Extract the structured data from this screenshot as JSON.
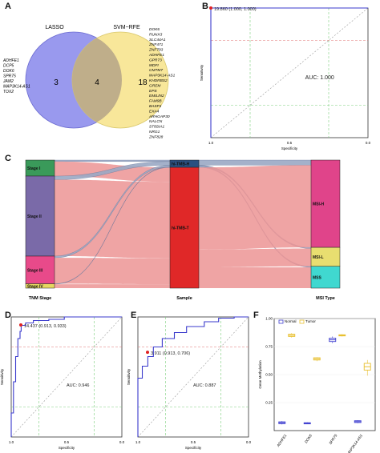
{
  "panel_labels": [
    "A",
    "B",
    "C",
    "D",
    "E",
    "F"
  ],
  "venn": {
    "left_label": "LASSO",
    "right_label": "SVM−RFE",
    "left_only": "3",
    "both": "4",
    "right_only": "18",
    "left_genes": [
      "ADHFE1",
      "DCP5",
      "DOK6",
      "SPR75",
      "JAM2",
      "MAP3K14-AS1",
      "TOX2"
    ],
    "right_genes": [
      "DOK6",
      "RUNX3",
      "SLC44A1",
      "ZNF471",
      "ZNF793",
      "ADHFE1",
      "GPR73",
      "MDFI",
      "CMTM7",
      "MAP3K14-AS1",
      "KHDRBS2",
      "GREM",
      "EPS",
      "EMILIN2",
      "FAM9B",
      "BASP1",
      "EXA4",
      "ARHGAP30",
      "NALCN",
      "ST8SIA1",
      "NRG1",
      "ZNF828"
    ],
    "colors": {
      "left": "#9999ee",
      "right": "#f8e79a",
      "overlap": "#bfae8a"
    }
  },
  "chart_data": [
    {
      "panel": "B",
      "type": "line",
      "xlabel": "Specificity",
      "ylabel": "Sensitivity",
      "x": [
        1.0,
        1.0,
        0.0
      ],
      "y": [
        0.0,
        1.0,
        1.0
      ],
      "xlim": [
        1.0,
        0.0
      ],
      "ylim": [
        0.0,
        1.0
      ],
      "xticks": [
        "1.0",
        "0.5",
        "0.0"
      ],
      "threshold_label": "19.860 (1.000, 1.000)",
      "auc_label": "AUC: 1.000",
      "grid": true
    },
    {
      "panel": "C",
      "type": "sankey",
      "axes": [
        "TNM Stage",
        "Sample",
        "MSI Type"
      ],
      "nodes": [
        {
          "axis": 0,
          "name": "Stage I",
          "value": 0.11,
          "color": "#3a9a5a"
        },
        {
          "axis": 0,
          "name": "Stage II",
          "value": 0.55,
          "color": "#7a6aa8"
        },
        {
          "axis": 0,
          "name": "Stage III",
          "value": 0.19,
          "color": "#e84a8a"
        },
        {
          "axis": 0,
          "name": "Stage IV",
          "value": 0.03,
          "color": "#e6d860"
        },
        {
          "axis": 1,
          "name": "hi-TMB-H",
          "value": 0.05,
          "color": "#2a5080"
        },
        {
          "axis": 1,
          "name": "hi-TMB-T",
          "value": 0.83,
          "color": "#e02828"
        },
        {
          "axis": 2,
          "name": "MSI-H",
          "value": 0.6,
          "color": "#e0448a"
        },
        {
          "axis": 2,
          "name": "MSI-L",
          "value": 0.13,
          "color": "#e8de70"
        },
        {
          "axis": 2,
          "name": "MSS",
          "value": 0.15,
          "color": "#40d8d0"
        }
      ],
      "flow_colors": {
        "main": "#ec9494",
        "minor": "#9aa8c4"
      }
    },
    {
      "panel": "D",
      "type": "line",
      "xlabel": "Specificity",
      "ylabel": "Sensitivity",
      "xlim": [
        1.0,
        0.0
      ],
      "ylim": [
        0.0,
        1.0
      ],
      "xticks": [
        "1.0",
        "0.5",
        "0.0"
      ],
      "x": [
        1.0,
        1.0,
        0.98,
        0.98,
        0.96,
        0.96,
        0.94,
        0.94,
        0.92,
        0.92,
        0.91,
        0.91,
        0.87,
        0.87,
        0.8,
        0.8,
        0.66,
        0.66,
        0.52,
        0.52,
        0.1,
        0.1,
        0.0
      ],
      "y": [
        0.0,
        0.2,
        0.2,
        0.46,
        0.46,
        0.67,
        0.67,
        0.82,
        0.82,
        0.88,
        0.88,
        0.93,
        0.93,
        0.95,
        0.95,
        0.97,
        0.97,
        0.98,
        0.98,
        1.0,
        1.0,
        1.0,
        1.0
      ],
      "threshold_label": "14.437 (0.913, 0.933)",
      "auc_label": "AUC: 0.946",
      "grid": true
    },
    {
      "panel": "E",
      "type": "line",
      "xlabel": "Specificity",
      "ylabel": "Sensitivity",
      "xlim": [
        1.0,
        0.0
      ],
      "ylim": [
        0.0,
        1.0
      ],
      "xticks": [
        "1.0",
        "0.5",
        "0.0"
      ],
      "x": [
        1.0,
        1.0,
        0.96,
        0.96,
        0.91,
        0.91,
        0.86,
        0.86,
        0.78,
        0.78,
        0.67,
        0.67,
        0.56,
        0.56,
        0.4,
        0.4,
        0.27,
        0.27,
        0.13,
        0.13,
        0.0
      ],
      "y": [
        0.0,
        0.49,
        0.49,
        0.59,
        0.59,
        0.67,
        0.67,
        0.75,
        0.75,
        0.82,
        0.82,
        0.87,
        0.87,
        0.92,
        0.92,
        0.96,
        0.96,
        0.99,
        0.99,
        1.0,
        1.0
      ],
      "threshold_label": "3.911 (0.913, 0.706)",
      "auc_label": "AUC: 0.887",
      "grid": true
    },
    {
      "panel": "F",
      "type": "box",
      "ylabel": "Gene Methylation",
      "legend": [
        "Normal",
        "Tumor"
      ],
      "legend_position": "top-left",
      "colors": {
        "Normal": "#4040d0",
        "Tumor": "#e8c030"
      },
      "ylim": [
        0.0,
        1.0
      ],
      "yticks": [
        0.25,
        0.5,
        0.75,
        1.0
      ],
      "categories": [
        "ADHFE1",
        "DOK6",
        "SPR75",
        "MAP3K14-AS1"
      ],
      "series": [
        {
          "name": "Normal",
          "median": [
            0.07,
            0.065,
            0.81,
            0.08
          ],
          "q1": [
            0.062,
            0.06,
            0.795,
            0.072
          ],
          "q3": [
            0.078,
            0.07,
            0.825,
            0.088
          ],
          "min": [
            0.055,
            0.058,
            0.78,
            0.066
          ],
          "max": [
            0.085,
            0.074,
            0.84,
            0.092
          ]
        },
        {
          "name": "Tumor",
          "median": [
            0.85,
            0.64,
            0.85,
            0.57
          ],
          "q1": [
            0.84,
            0.63,
            0.845,
            0.54
          ],
          "q3": [
            0.86,
            0.65,
            0.855,
            0.6
          ],
          "min": [
            0.83,
            0.62,
            0.84,
            0.49
          ],
          "max": [
            0.87,
            0.655,
            0.86,
            0.63
          ]
        }
      ]
    }
  ]
}
